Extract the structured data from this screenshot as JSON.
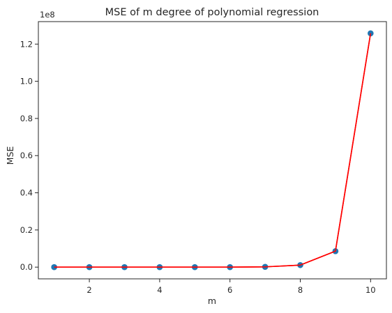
{
  "chart_data": {
    "type": "line",
    "title": "MSE of m degree of polynomial regression",
    "xlabel": "m",
    "ylabel": "MSE",
    "y_offset_label": "1e8",
    "y_scale": 100000000,
    "x": [
      1,
      2,
      3,
      4,
      5,
      6,
      7,
      8,
      9,
      10
    ],
    "series": [
      {
        "values": [
          0,
          0,
          0,
          0,
          0,
          0,
          150000,
          1100000,
          8600000,
          125800000
        ],
        "line_color": "#ff0000",
        "marker_color": "#1f77b4"
      }
    ],
    "xlim": [
      0.55,
      10.45
    ],
    "ylim": [
      -6300000,
      132100000
    ],
    "x_ticks": [
      2,
      4,
      6,
      8,
      10
    ],
    "x_tick_labels": [
      "2",
      "4",
      "6",
      "8",
      "10"
    ],
    "y_ticks": [
      0,
      20000000,
      40000000,
      60000000,
      80000000,
      100000000,
      120000000
    ],
    "y_tick_labels": [
      "0.0",
      "0.2",
      "0.4",
      "0.6",
      "0.8",
      "1.0",
      "1.2"
    ],
    "grid": false,
    "legend": false
  }
}
